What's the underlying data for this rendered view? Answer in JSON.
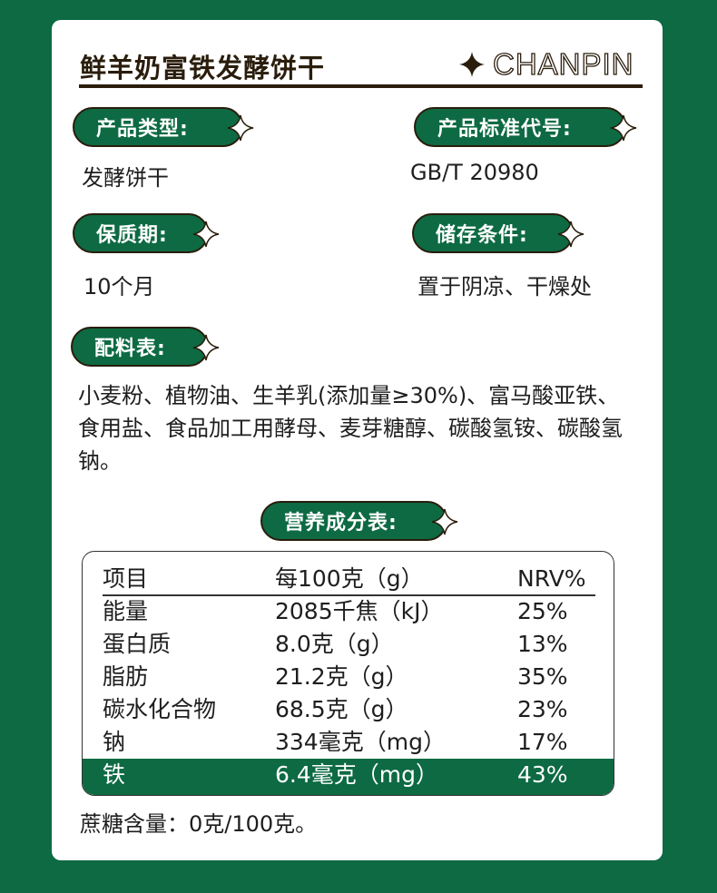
{
  "title": "鲜羊奶富铁发酵饼干",
  "brand": "CHANPIN",
  "sections": {
    "type": {
      "label": "产品类型:",
      "value": "发酵饼干"
    },
    "standard": {
      "label": "产品标准代号:",
      "value": "GB/T 20980"
    },
    "shelf_life": {
      "label": "保质期:",
      "value": "10个月"
    },
    "storage": {
      "label": "储存条件:",
      "value": "置于阴凉、干燥处"
    },
    "ingredients": {
      "label": "配料表:",
      "value": "小麦粉、植物油、生羊乳(添加量≥30%)、富马酸亚铁、食用盐、食品加工用酵母、麦芽糖醇、碳酸氢铵、碳酸氢钠。"
    }
  },
  "nutrition": {
    "label": "营养成分表:",
    "headers": [
      "项目",
      "每100克（g）",
      "NRV%"
    ],
    "rows": [
      [
        "能量",
        "2085千焦（kJ）",
        "25%"
      ],
      [
        "蛋白质",
        "8.0克（g）",
        "13%"
      ],
      [
        "脂肪",
        "21.2克（g）",
        "35%"
      ],
      [
        "碳水化合物",
        "68.5克（g）",
        "23%"
      ],
      [
        "钠",
        "334毫克（mg）",
        "17%"
      ],
      [
        "铁",
        "6.4毫克（mg）",
        "43%"
      ]
    ],
    "highlighted_row": "铁"
  },
  "footnote": "蔗糖含量：0克/100克。",
  "colors": {
    "green": "#0d6a43",
    "dark": "#2a1d0c"
  }
}
